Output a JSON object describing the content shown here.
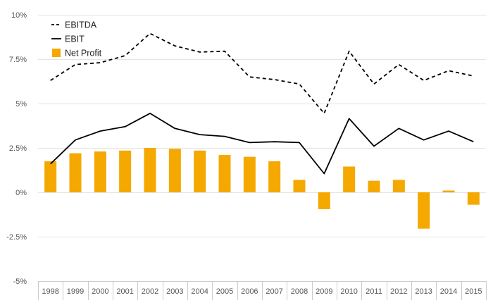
{
  "chart_data": {
    "type": "bar",
    "categories": [
      "1998",
      "1999",
      "2000",
      "2001",
      "2002",
      "2003",
      "2004",
      "2005",
      "2006",
      "2007",
      "2008",
      "2009",
      "2010",
      "2011",
      "2012",
      "2013",
      "2014",
      "2015"
    ],
    "series": [
      {
        "name": "EBITDA",
        "kind": "line",
        "style": "dashed",
        "color": "#000000",
        "values": [
          6.3,
          7.2,
          7.3,
          7.7,
          8.95,
          8.25,
          7.9,
          7.95,
          6.5,
          6.35,
          6.1,
          4.45,
          7.95,
          6.1,
          7.2,
          6.3,
          6.85,
          6.55
        ]
      },
      {
        "name": "EBIT",
        "kind": "line",
        "style": "solid",
        "color": "#000000",
        "values": [
          1.6,
          2.95,
          3.45,
          3.7,
          4.45,
          3.6,
          3.25,
          3.15,
          2.8,
          2.85,
          2.8,
          1.05,
          4.15,
          2.6,
          3.6,
          2.95,
          3.45,
          2.85
        ]
      },
      {
        "name": "Net Profit",
        "kind": "bar",
        "color": "#f5a800",
        "values": [
          1.75,
          2.2,
          2.3,
          2.35,
          2.5,
          2.45,
          2.35,
          2.1,
          2.0,
          1.75,
          0.7,
          -0.95,
          1.45,
          0.65,
          0.7,
          -2.05,
          0.1,
          -0.7
        ]
      }
    ],
    "yticks": [
      "10%",
      "7.5%",
      "5%",
      "2.5%",
      "0%",
      "-2.5%",
      "-5%"
    ],
    "ytick_values": [
      10,
      7.5,
      5,
      2.5,
      0,
      -2.5,
      -5
    ],
    "ylim": [
      -5,
      10
    ],
    "legend": "top-left",
    "grid": true
  }
}
